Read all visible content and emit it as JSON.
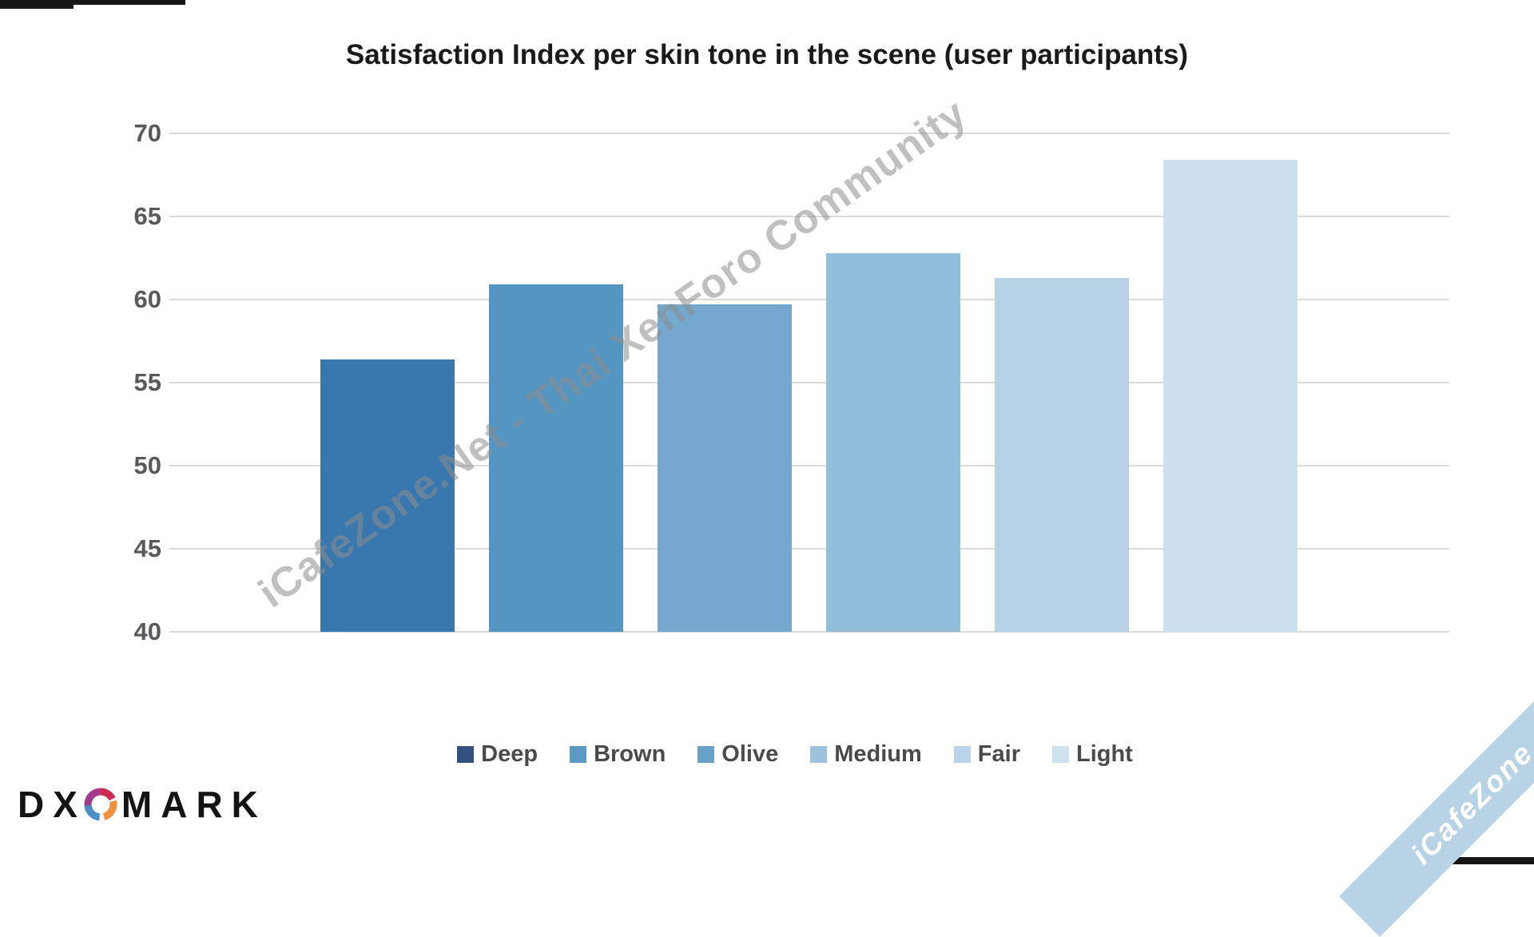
{
  "title": "Satisfaction Index per skin tone in the scene (user participants)",
  "chart_data": {
    "type": "bar",
    "title": "Satisfaction Index per skin tone in the scene (user participants)",
    "categories": [
      "Deep",
      "Brown",
      "Olive",
      "Medium",
      "Fair",
      "Light"
    ],
    "values": [
      56.4,
      60.9,
      59.7,
      62.8,
      61.3,
      68.4
    ],
    "bar_colors": [
      "#3878ae",
      "#5595c1",
      "#74a8ce",
      "#92bedc",
      "#b7d2e6",
      "#cde0ee"
    ],
    "legend_colors": [
      "#34507e",
      "#5b9ac5",
      "#68a2c8",
      "#9cc2dc",
      "#b9d4e8",
      "#cfe2ef"
    ],
    "xlabel": "",
    "ylabel": "",
    "ylim": [
      40,
      70
    ],
    "yticks": [
      70,
      65,
      60,
      55,
      50,
      45,
      40
    ],
    "grid": true,
    "legend_position": "bottom",
    "gridline_color": "#dbdbdb",
    "tick_label_color": "#58595b"
  },
  "watermarks": {
    "diagonal": "iCafeZone.Net - Thai XenForo Community",
    "ribbon": "iCafeZone",
    "ribbon_bg": "#b9d3e6"
  },
  "logo": {
    "prefix": "DX",
    "suffix": "MARK"
  }
}
